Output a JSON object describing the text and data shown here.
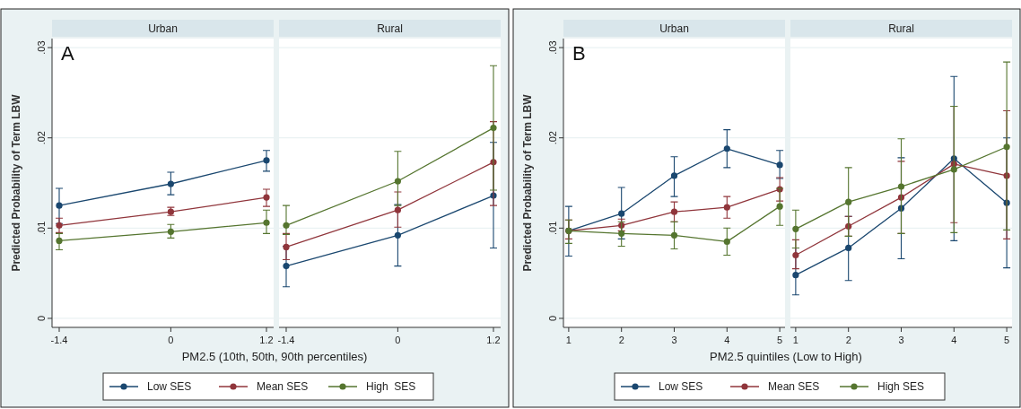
{
  "chart_data": [
    {
      "type": "line",
      "title": "Urban",
      "xlabel": "PM2.5 (10th, 50th, 90th percentiles)",
      "ylabel": "Predicted Probability of Term LBW",
      "annotations": [
        "A"
      ],
      "x": [
        -1.4,
        0,
        1.2
      ],
      "xlim": [
        -1.49,
        1.29
      ],
      "xticks": [
        -1.4,
        0,
        1.2
      ],
      "ylim": [
        -0.001,
        0.031
      ],
      "yticks": [
        {
          "value": 0,
          "label": "0"
        },
        {
          "value": 0.01,
          "label": ".01"
        },
        {
          "value": 0.02,
          "label": ".02"
        },
        {
          "value": 0.03,
          "label": ".03"
        }
      ],
      "grid": "y",
      "marker": "circle",
      "legend": "bottom",
      "series": [
        {
          "name": "Low SES",
          "color": "#1a476f",
          "values": [
            0.0125,
            0.0149,
            0.0175
          ],
          "errors": [
            [
              0.0105,
              0.0144
            ],
            [
              0.0137,
              0.0162
            ],
            [
              0.0163,
              0.0186
            ]
          ]
        },
        {
          "name": "Mean SES",
          "color": "#90353b",
          "values": [
            0.0103,
            0.0118,
            0.0134
          ],
          "errors": [
            [
              0.0095,
              0.0111
            ],
            [
              0.0114,
              0.0123
            ],
            [
              0.0124,
              0.0143
            ]
          ]
        },
        {
          "name": "High  SES",
          "color": "#55752f",
          "values": [
            0.0086,
            0.0096,
            0.0106
          ],
          "errors": [
            [
              0.0076,
              0.0094
            ],
            [
              0.0089,
              0.0104
            ],
            [
              0.0094,
              0.012
            ]
          ]
        }
      ]
    },
    {
      "type": "line",
      "title": "Rural",
      "x": [
        -1.4,
        0,
        1.2
      ],
      "xlim": [
        -1.49,
        1.29
      ],
      "xticks": [
        -1.4,
        0,
        1.2
      ],
      "ylim": [
        -0.001,
        0.031
      ],
      "yticks": [
        {
          "value": 0,
          "label": null
        },
        {
          "value": 0.01,
          "label": null
        },
        {
          "value": 0.02,
          "label": null
        },
        {
          "value": 0.03,
          "label": null
        }
      ],
      "tick_labels": "x",
      "grid": "y",
      "marker": "circle",
      "series": [
        {
          "color": "#1a476f",
          "values": [
            0.0058,
            0.0092,
            0.0136
          ],
          "errors": [
            [
              0.0035,
              0.008
            ],
            [
              0.0058,
              0.0126
            ],
            [
              0.0078,
              0.0195
            ]
          ]
        },
        {
          "color": "#90353b",
          "values": [
            0.0079,
            0.012,
            0.0173
          ],
          "errors": [
            [
              0.0065,
              0.0094
            ],
            [
              0.0101,
              0.014
            ],
            [
              0.0125,
              0.0218
            ]
          ]
        },
        {
          "color": "#55752f",
          "values": [
            0.0103,
            0.0152,
            0.0211
          ],
          "errors": [
            [
              0.0093,
              0.0125
            ],
            [
              0.0125,
              0.0185
            ],
            [
              0.0142,
              0.028
            ]
          ]
        }
      ]
    },
    {
      "type": "line",
      "title": "Urban",
      "xlabel": "PM2.5 quintiles (Low to High)",
      "ylabel": "Predicted Probability of Term LBW",
      "annotations": [
        "B"
      ],
      "x": [
        1,
        2,
        3,
        4,
        5
      ],
      "xlim": [
        0.9,
        5.1
      ],
      "xticks": [
        1,
        2,
        3,
        4,
        5
      ],
      "ylim": [
        -0.001,
        0.031
      ],
      "yticks": [
        {
          "value": 0,
          "label": "0"
        },
        {
          "value": 0.01,
          "label": ".01"
        },
        {
          "value": 0.02,
          "label": ".02"
        },
        {
          "value": 0.03,
          "label": ".03"
        }
      ],
      "grid": "y",
      "marker": "circle",
      "legend": "bottom",
      "series": [
        {
          "name": "Low SES",
          "color": "#1a476f",
          "values": [
            0.0097,
            0.0116,
            0.0158,
            0.0188,
            0.017
          ],
          "errors": [
            [
              0.0069,
              0.0124
            ],
            [
              0.0088,
              0.0145
            ],
            [
              0.0135,
              0.0179
            ],
            [
              0.0167,
              0.0209
            ],
            [
              0.0155,
              0.0186
            ]
          ]
        },
        {
          "name": "Mean SES",
          "color": "#90353b",
          "values": [
            0.0097,
            0.0103,
            0.0118,
            0.0123,
            0.0143
          ],
          "errors": [
            [
              0.0088,
              0.0109
            ],
            [
              0.0097,
              0.011
            ],
            [
              0.0107,
              0.0129
            ],
            [
              0.0111,
              0.0135
            ],
            [
              0.013,
              0.0156
            ]
          ]
        },
        {
          "name": "High SES",
          "color": "#55752f",
          "values": [
            0.0097,
            0.0094,
            0.0092,
            0.0085,
            0.0124
          ],
          "errors": [
            [
              0.0083,
              0.0109
            ],
            [
              0.008,
              0.0107
            ],
            [
              0.0077,
              0.0107
            ],
            [
              0.007,
              0.01
            ],
            [
              0.0103,
              0.0144
            ]
          ]
        }
      ]
    },
    {
      "type": "line",
      "title": "Rural",
      "x": [
        1,
        2,
        3,
        4,
        5
      ],
      "xlim": [
        0.9,
        5.1
      ],
      "xticks": [
        1,
        2,
        3,
        4,
        5
      ],
      "ylim": [
        -0.001,
        0.031
      ],
      "yticks": [
        {
          "value": 0,
          "label": null
        },
        {
          "value": 0.01,
          "label": null
        },
        {
          "value": 0.02,
          "label": null
        },
        {
          "value": 0.03,
          "label": null
        }
      ],
      "tick_labels": "x",
      "grid": "y",
      "marker": "circle",
      "series": [
        {
          "color": "#1a476f",
          "values": [
            0.0048,
            0.0078,
            0.0122,
            0.0177,
            0.0128
          ],
          "errors": [
            [
              0.0026,
              0.0078
            ],
            [
              0.0042,
              0.0113
            ],
            [
              0.0066,
              0.0178
            ],
            [
              0.0086,
              0.0268
            ],
            [
              0.0056,
              0.02
            ]
          ]
        },
        {
          "color": "#90353b",
          "values": [
            0.007,
            0.0102,
            0.0134,
            0.0171,
            0.0158
          ],
          "errors": [
            [
              0.0055,
              0.0087
            ],
            [
              0.0091,
              0.0113
            ],
            [
              0.0094,
              0.0174
            ],
            [
              0.0106,
              0.0235
            ],
            [
              0.0088,
              0.023
            ]
          ]
        },
        {
          "color": "#55752f",
          "values": [
            0.0099,
            0.0129,
            0.0146,
            0.0165,
            0.019
          ],
          "errors": [
            [
              0.0078,
              0.012
            ],
            [
              0.0091,
              0.0167
            ],
            [
              0.0094,
              0.0199
            ],
            [
              0.0095,
              0.0235
            ],
            [
              0.0098,
              0.0284
            ]
          ]
        }
      ]
    }
  ]
}
